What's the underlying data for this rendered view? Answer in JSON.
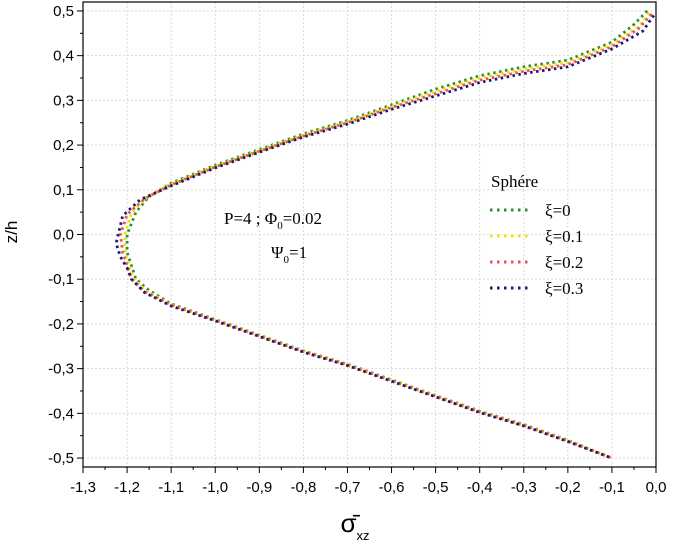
{
  "chart_data": {
    "type": "line",
    "xlabel": "σ̄",
    "xlabel_sub": "xz",
    "ylabel": "z/h",
    "xlim": [
      -1.3,
      0.0
    ],
    "ylim": [
      -0.52,
      0.52
    ],
    "xticks": [
      -1.3,
      -1.2,
      -1.1,
      -1.0,
      -0.9,
      -0.8,
      -0.7,
      -0.6,
      -0.5,
      -0.4,
      -0.3,
      -0.2,
      -0.1,
      0.0
    ],
    "xtick_labels": [
      "-1,3",
      "-1,2",
      "-1,1",
      "-1,0",
      "-0,9",
      "-0,8",
      "-0,7",
      "-0,6",
      "-0,5",
      "-0,4",
      "-0,3",
      "-0,2",
      "-0,1",
      "0,0"
    ],
    "yticks": [
      -0.5,
      -0.4,
      -0.3,
      -0.2,
      -0.1,
      0.0,
      0.1,
      0.2,
      0.3,
      0.4,
      0.5
    ],
    "ytick_labels": [
      "-0,5",
      "-0,4",
      "-0,3",
      "-0,2",
      "-0,1",
      "0,0",
      "0,1",
      "0,2",
      "0,3",
      "0,4",
      "0,5"
    ],
    "grid": true,
    "annotations": {
      "line1_a": "P=4 ; Φ",
      "line1_sub": "0",
      "line1_b": "=0.02",
      "line2_a": "Ψ",
      "line2_sub": "0",
      "line2_b": "=1"
    },
    "legend": {
      "title": "Sphére",
      "position": "center-right"
    },
    "series": [
      {
        "name": "ξ=0",
        "color": "#2e8b2e",
        "points": [
          [
            -0.02,
            0.5
          ],
          [
            -0.05,
            0.47
          ],
          [
            -0.1,
            0.43
          ],
          [
            -0.2,
            0.39
          ],
          [
            -0.3,
            0.375
          ],
          [
            -0.4,
            0.355
          ],
          [
            -0.5,
            0.325
          ],
          [
            -0.6,
            0.29
          ],
          [
            -0.7,
            0.255
          ],
          [
            -0.8,
            0.225
          ],
          [
            -0.9,
            0.19
          ],
          [
            -1.0,
            0.155
          ],
          [
            -1.1,
            0.115
          ],
          [
            -1.15,
            0.085
          ],
          [
            -1.18,
            0.05
          ],
          [
            -1.2,
            0.0
          ],
          [
            -1.2,
            -0.04
          ],
          [
            -1.19,
            -0.07
          ],
          [
            -1.18,
            -0.1
          ],
          [
            -1.15,
            -0.125
          ],
          [
            -1.1,
            -0.155
          ],
          [
            -1.0,
            -0.19
          ],
          [
            -0.9,
            -0.225
          ],
          [
            -0.8,
            -0.26
          ],
          [
            -0.7,
            -0.29
          ],
          [
            -0.6,
            -0.325
          ],
          [
            -0.5,
            -0.36
          ],
          [
            -0.4,
            -0.395
          ],
          [
            -0.3,
            -0.425
          ],
          [
            -0.2,
            -0.46
          ],
          [
            -0.1,
            -0.5
          ]
        ]
      },
      {
        "name": "ξ=0.1",
        "color": "#e6e600",
        "points": [
          [
            -0.015,
            0.495
          ],
          [
            -0.04,
            0.465
          ],
          [
            -0.1,
            0.425
          ],
          [
            -0.2,
            0.385
          ],
          [
            -0.3,
            0.37
          ],
          [
            -0.4,
            0.35
          ],
          [
            -0.5,
            0.32
          ],
          [
            -0.6,
            0.287
          ],
          [
            -0.7,
            0.253
          ],
          [
            -0.8,
            0.222
          ],
          [
            -0.9,
            0.188
          ],
          [
            -1.0,
            0.153
          ],
          [
            -1.1,
            0.113
          ],
          [
            -1.155,
            0.083
          ],
          [
            -1.19,
            0.048
          ],
          [
            -1.205,
            0.0
          ],
          [
            -1.205,
            -0.04
          ],
          [
            -1.195,
            -0.07
          ],
          [
            -1.185,
            -0.1
          ],
          [
            -1.155,
            -0.127
          ],
          [
            -1.1,
            -0.157
          ],
          [
            -1.0,
            -0.191
          ],
          [
            -0.9,
            -0.226
          ],
          [
            -0.8,
            -0.261
          ],
          [
            -0.7,
            -0.291
          ],
          [
            -0.6,
            -0.326
          ],
          [
            -0.5,
            -0.361
          ],
          [
            -0.4,
            -0.396
          ],
          [
            -0.3,
            -0.426
          ],
          [
            -0.2,
            -0.461
          ],
          [
            -0.1,
            -0.5
          ]
        ]
      },
      {
        "name": "ξ=0.2",
        "color": "#f04e5c",
        "points": [
          [
            -0.01,
            0.493
          ],
          [
            -0.04,
            0.46
          ],
          [
            -0.1,
            0.42
          ],
          [
            -0.2,
            0.38
          ],
          [
            -0.3,
            0.365
          ],
          [
            -0.4,
            0.345
          ],
          [
            -0.5,
            0.315
          ],
          [
            -0.6,
            0.284
          ],
          [
            -0.7,
            0.25
          ],
          [
            -0.8,
            0.22
          ],
          [
            -0.9,
            0.186
          ],
          [
            -1.0,
            0.151
          ],
          [
            -1.1,
            0.111
          ],
          [
            -1.16,
            0.08
          ],
          [
            -1.2,
            0.045
          ],
          [
            -1.215,
            0.0
          ],
          [
            -1.21,
            -0.04
          ],
          [
            -1.2,
            -0.07
          ],
          [
            -1.19,
            -0.1
          ],
          [
            -1.16,
            -0.128
          ],
          [
            -1.1,
            -0.158
          ],
          [
            -1.0,
            -0.192
          ],
          [
            -0.9,
            -0.227
          ],
          [
            -0.8,
            -0.262
          ],
          [
            -0.7,
            -0.292
          ],
          [
            -0.6,
            -0.327
          ],
          [
            -0.5,
            -0.362
          ],
          [
            -0.4,
            -0.397
          ],
          [
            -0.3,
            -0.427
          ],
          [
            -0.2,
            -0.462
          ],
          [
            -0.1,
            -0.5
          ]
        ]
      },
      {
        "name": "ξ=0.3",
        "color": "#1a1a6e",
        "points": [
          [
            -0.005,
            0.49
          ],
          [
            -0.03,
            0.455
          ],
          [
            -0.1,
            0.415
          ],
          [
            -0.2,
            0.375
          ],
          [
            -0.3,
            0.36
          ],
          [
            -0.4,
            0.34
          ],
          [
            -0.5,
            0.31
          ],
          [
            -0.6,
            0.28
          ],
          [
            -0.7,
            0.247
          ],
          [
            -0.8,
            0.218
          ],
          [
            -0.9,
            0.184
          ],
          [
            -1.0,
            0.149
          ],
          [
            -1.1,
            0.109
          ],
          [
            -1.17,
            0.078
          ],
          [
            -1.21,
            0.042
          ],
          [
            -1.225,
            -0.02
          ],
          [
            -1.215,
            -0.05
          ],
          [
            -1.2,
            -0.075
          ],
          [
            -1.19,
            -0.1
          ],
          [
            -1.16,
            -0.13
          ],
          [
            -1.1,
            -0.16
          ],
          [
            -1.0,
            -0.193
          ],
          [
            -0.9,
            -0.228
          ],
          [
            -0.8,
            -0.263
          ],
          [
            -0.7,
            -0.293
          ],
          [
            -0.6,
            -0.328
          ],
          [
            -0.5,
            -0.363
          ],
          [
            -0.4,
            -0.398
          ],
          [
            -0.3,
            -0.428
          ],
          [
            -0.2,
            -0.463
          ],
          [
            -0.1,
            -0.5
          ]
        ]
      }
    ]
  }
}
